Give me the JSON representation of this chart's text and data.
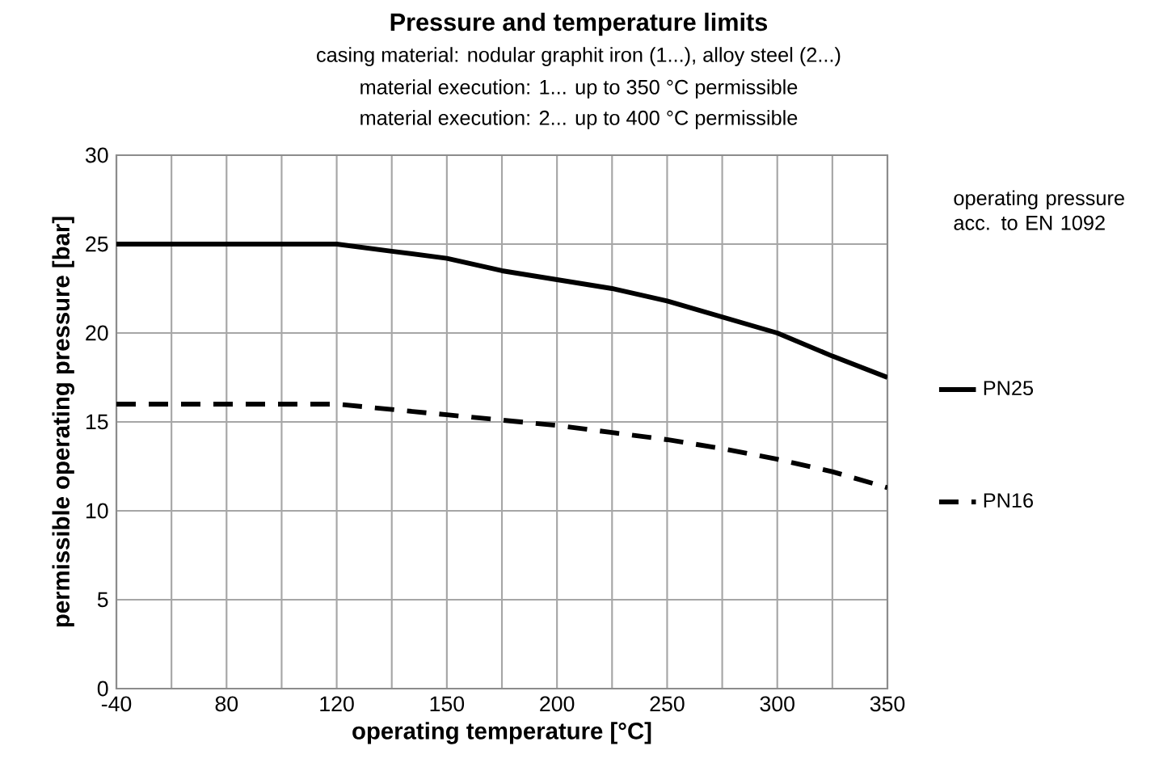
{
  "chart_data": {
    "type": "line",
    "title": "Pressure and temperature limits",
    "subtitle": "casing material: nodular graphit iron (1...), alloy steel (2...)",
    "annotations": [
      "material execution: 1... up to 350 °C permissible",
      "material execution: 2... up to 400 °C permissible"
    ],
    "xlabel": "operating temperature [°C]",
    "ylabel": "permissible operating pressure [bar]",
    "legend_title": "operating pressure acc. to EN 1092",
    "categories": [
      "-40",
      null,
      "80",
      null,
      "120",
      null,
      "150",
      null,
      "200",
      null,
      "250",
      null,
      "300",
      null,
      "350"
    ],
    "series": [
      {
        "name": "PN25",
        "color": "#000000",
        "line_style": "solid",
        "values": [
          25,
          25,
          25,
          25,
          25,
          24.6,
          24.2,
          23.5,
          23,
          22.5,
          21.8,
          20.9,
          20,
          18.7,
          17.5
        ]
      },
      {
        "name": "PN16",
        "color": "#000000",
        "line_style": "dashed",
        "values": [
          16,
          16,
          16,
          16,
          16,
          15.7,
          15.4,
          15.1,
          14.8,
          14.4,
          14,
          13.5,
          12.9,
          12.2,
          11.3
        ]
      }
    ],
    "ylim": [
      0,
      30
    ],
    "yticks": [
      0,
      5,
      10,
      15,
      20,
      25,
      30
    ],
    "grid": true,
    "legend": "right"
  }
}
